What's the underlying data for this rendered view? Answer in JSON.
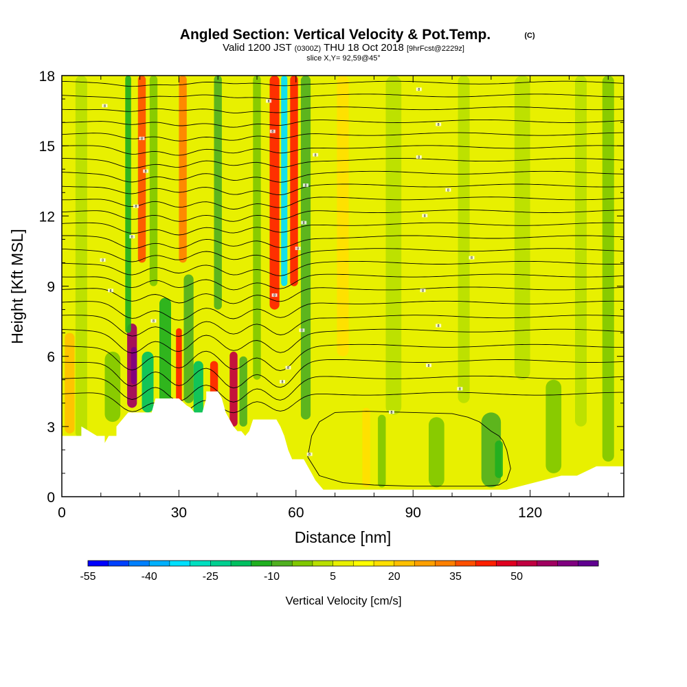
{
  "chart_data": {
    "type": "heatmap",
    "title": "Angled Section: Vertical Velocity & Pot.Temp.",
    "title_unit": "(C)",
    "subtitle": {
      "valid": "Valid 1200 JST",
      "utc": "(0300Z)",
      "date": "THU 18 Oct 2018",
      "forecast": "[9hrFcst@2229z]"
    },
    "slice_info": "slice X,Y= 92,59@45°",
    "xlabel": "Distance [nm]",
    "ylabel": "Height [Kft MSL]",
    "xlim": [
      0,
      144
    ],
    "ylim": [
      0,
      18
    ],
    "x_ticks": [
      0,
      30,
      60,
      90,
      120
    ],
    "y_ticks": [
      0,
      3,
      6,
      9,
      12,
      15,
      18
    ],
    "grid": false,
    "colorbar": {
      "title": "Vertical Velocity [cm/s]",
      "tick_labels": [
        "-55",
        "-40",
        "-25",
        "-10",
        "5",
        "20",
        "35",
        "50"
      ],
      "colors": [
        "#0000ff",
        "#0040ff",
        "#0080ff",
        "#00b0ff",
        "#00e0ff",
        "#00e0c0",
        "#00d090",
        "#00c060",
        "#20b020",
        "#50b020",
        "#80c800",
        "#b8e000",
        "#e8f000",
        "#ffff00",
        "#ffe000",
        "#ffc000",
        "#ffa000",
        "#ff8000",
        "#ff5000",
        "#ff2000",
        "#e00020",
        "#c00040",
        "#a00060",
        "#800080",
        "#600090"
      ]
    },
    "vertical_velocity_columns": [
      {
        "x": 2,
        "w": 2.5,
        "y0": 2.7,
        "y1": 7,
        "value": 15
      },
      {
        "x": 5,
        "w": 3,
        "y0": 2.5,
        "y1": 18,
        "value": -2
      },
      {
        "x": 13,
        "w": 4,
        "y0": 3.2,
        "y1": 6.2,
        "value": -10
      },
      {
        "x": 18,
        "w": 2.5,
        "y0": 3.8,
        "y1": 7.4,
        "value": 50
      },
      {
        "x": 18.5,
        "w": 1.5,
        "y0": 4.8,
        "y1": 6.4,
        "value": 58
      },
      {
        "x": 17,
        "w": 1.5,
        "y0": 7,
        "y1": 18,
        "value": -20
      },
      {
        "x": 20.5,
        "w": 2,
        "y0": 10,
        "y1": 18,
        "value": 30
      },
      {
        "x": 22,
        "w": 3,
        "y0": 3.6,
        "y1": 6.2,
        "value": -22
      },
      {
        "x": 23.5,
        "w": 2,
        "y0": 9,
        "y1": 18,
        "value": -8
      },
      {
        "x": 26.5,
        "w": 3,
        "y0": 4.0,
        "y1": 8.5,
        "value": -18
      },
      {
        "x": 30,
        "w": 1.5,
        "y0": 3.9,
        "y1": 7.2,
        "value": 38
      },
      {
        "x": 31,
        "w": 2,
        "y0": 10,
        "y1": 18,
        "value": 25
      },
      {
        "x": 32.5,
        "w": 2.5,
        "y0": 4.0,
        "y1": 9.5,
        "value": -12
      },
      {
        "x": 35,
        "w": 2.5,
        "y0": 3.5,
        "y1": 5.8,
        "value": -22
      },
      {
        "x": 39,
        "w": 2,
        "y0": 4.2,
        "y1": 5.8,
        "value": 35
      },
      {
        "x": 40,
        "w": 2,
        "y0": 8,
        "y1": 18,
        "value": -12
      },
      {
        "x": 44,
        "w": 2,
        "y0": 3.0,
        "y1": 6.2,
        "value": 45
      },
      {
        "x": 46.5,
        "w": 2,
        "y0": 3.0,
        "y1": 6.0,
        "value": -15
      },
      {
        "x": 50,
        "w": 2,
        "y0": 5,
        "y1": 18,
        "value": -10
      },
      {
        "x": 54.5,
        "w": 2.5,
        "y0": 8,
        "y1": 18,
        "value": 38
      },
      {
        "x": 57,
        "w": 1.6,
        "y0": 9,
        "y1": 18,
        "value": -40
      },
      {
        "x": 59.5,
        "w": 2,
        "y0": 9,
        "y1": 18,
        "value": 35
      },
      {
        "x": 62.5,
        "w": 2.5,
        "y0": 3.3,
        "y1": 18,
        "value": -12
      },
      {
        "x": 72,
        "w": 3,
        "y0": 6,
        "y1": 18,
        "value": 10
      },
      {
        "x": 78,
        "w": 2,
        "y0": 0.4,
        "y1": 3.8,
        "value": 14
      },
      {
        "x": 82,
        "w": 2,
        "y0": 0.4,
        "y1": 3.5,
        "value": -10
      },
      {
        "x": 85,
        "w": 4,
        "y0": 3.5,
        "y1": 18,
        "value": -4
      },
      {
        "x": 96,
        "w": 4,
        "y0": 0.4,
        "y1": 3.4,
        "value": -10
      },
      {
        "x": 103,
        "w": 3,
        "y0": 4,
        "y1": 18,
        "value": -4
      },
      {
        "x": 110,
        "w": 5,
        "y0": 0.4,
        "y1": 3.6,
        "value": -12
      },
      {
        "x": 112,
        "w": 2,
        "y0": 0.8,
        "y1": 2.4,
        "value": -16
      },
      {
        "x": 118,
        "w": 4,
        "y0": 5,
        "y1": 18,
        "value": -4
      },
      {
        "x": 126,
        "w": 4,
        "y0": 1,
        "y1": 5,
        "value": -6
      },
      {
        "x": 133,
        "w": 3,
        "y0": 3,
        "y1": 18,
        "value": -4
      },
      {
        "x": 140,
        "w": 3,
        "y0": 1.5,
        "y1": 18,
        "value": -6
      }
    ],
    "terrain_profile": {
      "x": [
        0,
        5,
        5,
        7,
        9,
        11,
        11,
        12,
        14,
        14,
        17,
        18,
        19,
        19,
        23,
        24,
        25,
        26,
        27,
        28,
        29,
        30,
        32,
        33,
        34,
        36,
        37,
        37,
        39,
        40,
        41,
        42,
        43,
        44,
        45,
        46,
        47,
        48,
        49,
        51,
        53,
        55,
        56,
        57,
        58,
        59,
        60,
        62,
        63,
        64,
        65,
        66,
        67,
        68,
        69,
        70,
        71,
        72,
        112,
        114,
        128,
        132,
        137,
        144,
        144
      ],
      "y": [
        2.6,
        2.6,
        3.0,
        2.8,
        2.6,
        2.6,
        2.3,
        2.6,
        2.6,
        3.0,
        3.6,
        3.6,
        3.6,
        3.6,
        3.6,
        4.2,
        4.2,
        4.2,
        4.2,
        4.2,
        4.2,
        4.2,
        3.9,
        3.8,
        3.6,
        3.6,
        4.2,
        4.5,
        4.5,
        4.5,
        4.2,
        3.6,
        3.3,
        3.0,
        2.8,
        2.8,
        2.6,
        2.8,
        3.3,
        3.3,
        3.3,
        3.3,
        3.0,
        2.6,
        2.0,
        1.6,
        1.6,
        1.6,
        1.3,
        1.0,
        0.7,
        0.5,
        0.3,
        0.3,
        0.3,
        0.3,
        0.3,
        0.3,
        0.3,
        0.3,
        0.9,
        0.9,
        1.3,
        1.3,
        1.3
      ]
    },
    "potential_temperature_isentropes": [
      {
        "level": 2,
        "y_base": 17.7,
        "trough": 0.1
      },
      {
        "level": 3,
        "y_base": 17.15,
        "trough": 0.1
      },
      {
        "level": 4,
        "y_base": 16.6,
        "trough": 0.15
      },
      {
        "level": 5,
        "y_base": 16.05,
        "trough": 0.2
      },
      {
        "level": 6,
        "y_base": 15.5,
        "trough": 0.25
      },
      {
        "level": 7,
        "y_base": 14.95,
        "trough": 0.3
      },
      {
        "level": 8,
        "y_base": 14.4,
        "trough": 0.3
      },
      {
        "level": 9,
        "y_base": 13.85,
        "trough": 0.35
      },
      {
        "level": 10,
        "y_base": 13.3,
        "trough": 0.35
      },
      {
        "level": 11,
        "y_base": 12.75,
        "trough": 0.4
      },
      {
        "level": 12,
        "y_base": 12.2,
        "trough": 0.4
      },
      {
        "level": 13,
        "y_base": 11.65,
        "trough": 0.4
      },
      {
        "level": 14,
        "y_base": 11.1,
        "trough": 0.45
      },
      {
        "level": 15,
        "y_base": 10.55,
        "trough": 0.45
      },
      {
        "level": 16,
        "y_base": 10.0,
        "trough": 0.5
      },
      {
        "level": 17,
        "y_base": 9.45,
        "trough": 0.55
      },
      {
        "level": 18,
        "y_base": 8.9,
        "trough": 0.6
      },
      {
        "level": 19,
        "y_base": 8.3,
        "trough": 0.7
      },
      {
        "level": 20,
        "y_base": 7.7,
        "trough": 0.8
      },
      {
        "level": 21,
        "y_base": 7.1,
        "trough": 0.9
      },
      {
        "level": 22,
        "y_base": 6.45,
        "trough": 1.0
      },
      {
        "level": 23,
        "y_base": 5.8,
        "trough": 1.1
      },
      {
        "level": 24,
        "y_base": 5.1,
        "trough": 1.0
      },
      {
        "level": 25,
        "y_base": 4.4,
        "trough": 0.8
      }
    ],
    "boundary_layer_contour": {
      "x": [
        63,
        64,
        66,
        70,
        78,
        90,
        100,
        104,
        107,
        110,
        112,
        113,
        114,
        115,
        114,
        112,
        108,
        100,
        90,
        80,
        72,
        66,
        63
      ],
      "y": [
        1.7,
        2.6,
        3.2,
        3.6,
        3.65,
        3.6,
        3.55,
        3.4,
        3.2,
        2.8,
        2.6,
        2.4,
        2.0,
        1.2,
        0.7,
        0.5,
        0.45,
        0.45,
        0.45,
        0.5,
        0.6,
        0.9,
        1.7
      ]
    },
    "contour_labels": [
      {
        "x": 11,
        "y": 16.7,
        "text": "8"
      },
      {
        "x": 20.5,
        "y": 15.3,
        "text": "8"
      },
      {
        "x": 21.5,
        "y": 13.9,
        "text": "8"
      },
      {
        "x": 19,
        "y": 12.4,
        "text": "8"
      },
      {
        "x": 18,
        "y": 11.1,
        "text": "8"
      },
      {
        "x": 10.5,
        "y": 10.1,
        "text": "8"
      },
      {
        "x": 12.5,
        "y": 8.8,
        "text": "8"
      },
      {
        "x": 23.5,
        "y": 7.5,
        "text": "8"
      },
      {
        "x": 53,
        "y": 16.9,
        "text": "8"
      },
      {
        "x": 54,
        "y": 15.6,
        "text": "8"
      },
      {
        "x": 65,
        "y": 14.6,
        "text": "8"
      },
      {
        "x": 62.5,
        "y": 13.3,
        "text": "8"
      },
      {
        "x": 62,
        "y": 11.7,
        "text": "8"
      },
      {
        "x": 60.5,
        "y": 10.6,
        "text": "8"
      },
      {
        "x": 54.5,
        "y": 8.6,
        "text": "8"
      },
      {
        "x": 61.5,
        "y": 7.1,
        "text": "8"
      },
      {
        "x": 58,
        "y": 5.5,
        "text": "8"
      },
      {
        "x": 56.5,
        "y": 4.9,
        "text": "8"
      },
      {
        "x": 91.5,
        "y": 17.4,
        "text": "8"
      },
      {
        "x": 96.5,
        "y": 15.9,
        "text": "8"
      },
      {
        "x": 91.5,
        "y": 14.5,
        "text": "8"
      },
      {
        "x": 99,
        "y": 13.1,
        "text": "8"
      },
      {
        "x": 93,
        "y": 12.0,
        "text": "8"
      },
      {
        "x": 105,
        "y": 10.2,
        "text": "8"
      },
      {
        "x": 92.5,
        "y": 8.8,
        "text": "8"
      },
      {
        "x": 96.5,
        "y": 7.3,
        "text": "8"
      },
      {
        "x": 94,
        "y": 5.6,
        "text": "8"
      },
      {
        "x": 102,
        "y": 4.6,
        "text": "8"
      },
      {
        "x": 84.5,
        "y": 3.6,
        "text": "8"
      },
      {
        "x": 63.5,
        "y": 1.8,
        "text": "8"
      }
    ]
  }
}
